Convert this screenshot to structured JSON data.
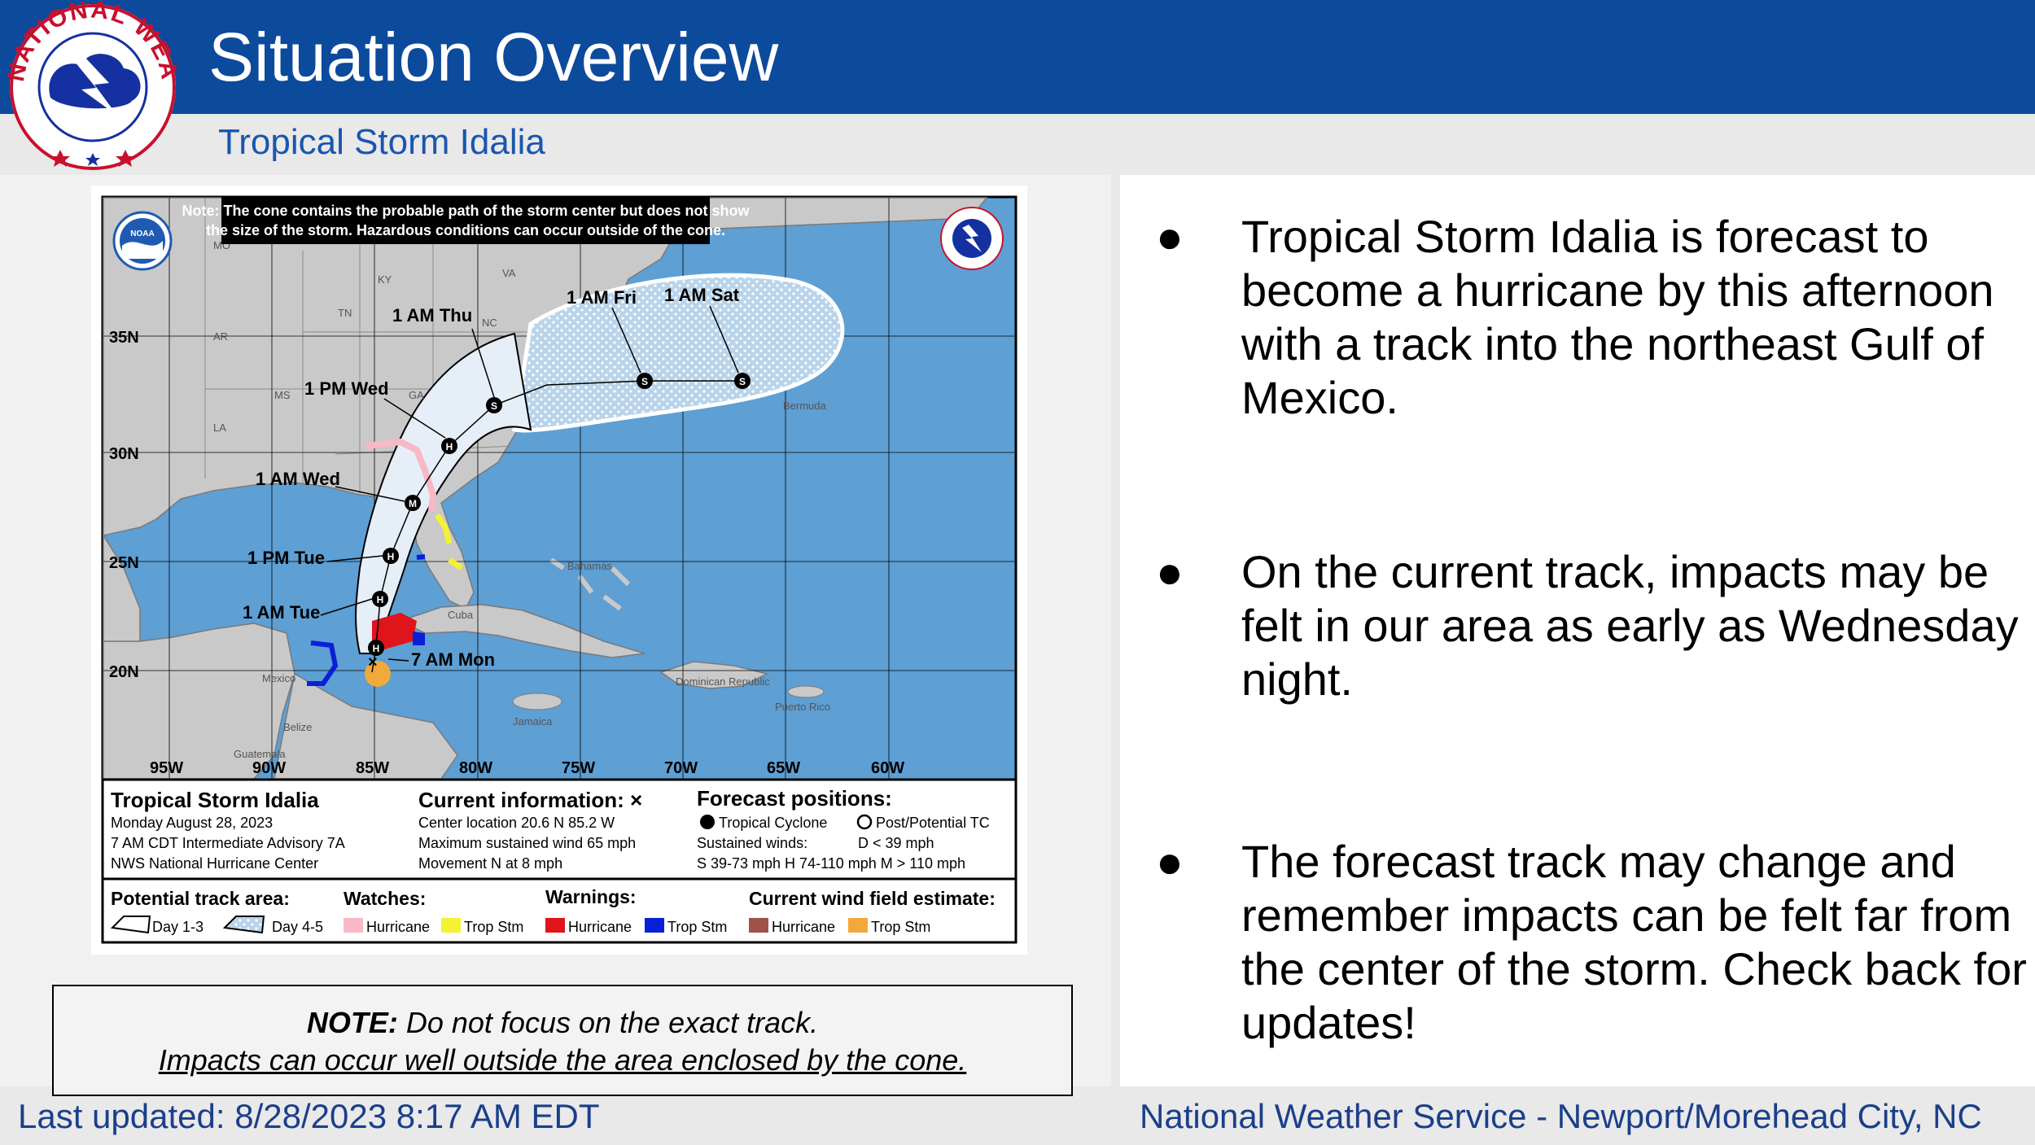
{
  "header": {
    "title": "Situation Overview",
    "subtitle": "Tropical Storm Idalia"
  },
  "logo": {
    "text": "NATIONAL WEATHER SERVICE",
    "colors": {
      "blue": "#1530a0",
      "red": "#c8102e"
    }
  },
  "map": {
    "note_line1": "Note: The cone contains the probable path of the storm center but does not show",
    "note_line2": "the size of the storm. Hazardous conditions can occur outside of the cone.",
    "lat_labels": [
      "35N",
      "30N",
      "25N",
      "20N"
    ],
    "lon_labels": [
      "95W",
      "90W",
      "85W",
      "80W",
      "75W",
      "70W",
      "65W",
      "60W"
    ],
    "state_labels": [
      "MO",
      "KY",
      "VA",
      "TN",
      "NC",
      "AR",
      "MS",
      "GA",
      "LA"
    ],
    "place_labels": [
      "Bermuda",
      "Bahamas",
      "Cuba",
      "Mexico",
      "Belize",
      "Guatemala",
      "Jamaica",
      "Dominican Republic",
      "Puerto Rico"
    ],
    "track_labels": [
      "1 AM Thu",
      "1 AM Fri",
      "1 AM Sat",
      "1 PM Wed",
      "1 AM Wed",
      "1 PM Tue",
      "1 AM Tue",
      "7 AM Mon"
    ],
    "track_markers": [
      "S",
      "S",
      "S",
      "H",
      "M",
      "H",
      "H",
      "H"
    ],
    "legend": {
      "storm_name": "Tropical Storm Idalia",
      "date": "Monday August 28, 2023",
      "advisory": "7 AM CDT Intermediate Advisory 7A",
      "center": "NWS National Hurricane Center",
      "current_title": "Current information: ×",
      "current_location": "Center location 20.6 N 85.2 W",
      "current_wind": "Maximum sustained wind 65 mph",
      "current_movement": "Movement N at 8 mph",
      "forecast_title": "Forecast positions:",
      "forecast_tc": "Tropical Cyclone",
      "forecast_post": "Post/Potential TC",
      "sustained_label": "Sustained winds:",
      "sustained_d": "D < 39 mph",
      "sustained_row": "S 39-73 mph  H 74-110 mph  M > 110 mph",
      "track_area_title": "Potential track area:",
      "day13": "Day 1-3",
      "day45": "Day 4-5",
      "watches_title": "Watches:",
      "warnings_title": "Warnings:",
      "wind_title": "Current wind field estimate:",
      "hurricane": "Hurricane",
      "trop_stm": "Trop Stm"
    },
    "colors": {
      "ocean": "#5e9fd4",
      "land": "#c9c9c9",
      "cone": "#e6eef7",
      "hurricane_watch": "#f7b9c6",
      "trop_watch": "#f5f233",
      "hurricane_warning": "#e0141b",
      "trop_warning": "#0a1fd8",
      "wind_hurricane": "#a0524a",
      "wind_trop": "#f2a93b"
    }
  },
  "bullets": [
    "Tropical Storm Idalia is forecast to become a hurricane by this afternoon with a track into the northeast Gulf of Mexico.",
    "On the current track, impacts may be felt in our area as early as Wednesday night.",
    "The forecast track may change and remember impacts can be felt far from the center of the storm. Check back for updates!"
  ],
  "note": {
    "bold": "NOTE:",
    "line1_rest": " Do not focus on the exact track.",
    "line2": "Impacts can occur well outside the area enclosed by the cone."
  },
  "footer": {
    "left": "Last updated: 8/28/2023 8:17 AM EDT",
    "right": "National Weather Service - Newport/Morehead City, NC"
  },
  "colors": {
    "header_bg": "#0c4a9c",
    "subtitle": "#1a56b0",
    "footer_text": "#1a3f8a"
  }
}
